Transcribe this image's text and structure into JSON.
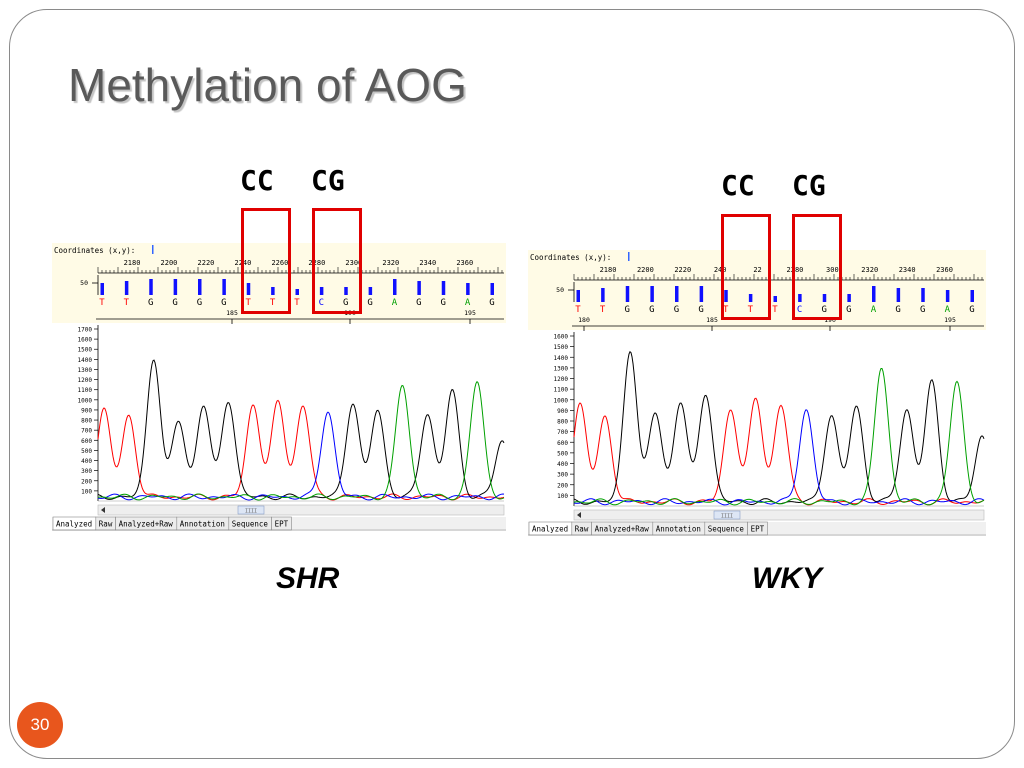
{
  "slide": {
    "title": "Methylation of AOG",
    "page_number": "30",
    "accent_color": "#e8561d"
  },
  "panels": [
    {
      "id": "shr",
      "caption": "SHR",
      "label_cc": "CC",
      "label_cg": "CG",
      "coordinates_label": "Coordinates (x,y):",
      "scale_top": [
        "2180",
        "2200",
        "2220",
        "2240",
        "2260",
        "2280",
        "2300",
        "2320",
        "2340",
        "2360"
      ],
      "bar_axis_label": "50",
      "bases": [
        "T",
        "T",
        "G",
        "G",
        "G",
        "G",
        "T",
        "T",
        "T",
        "C",
        "G",
        "G",
        "A",
        "G",
        "G",
        "A",
        "G"
      ],
      "position_markers": [
        "185",
        "190",
        "195"
      ],
      "y_ticks": [
        "1700",
        "1600",
        "1500",
        "1400",
        "1300",
        "1200",
        "1100",
        "1000",
        "900",
        "800",
        "700",
        "600",
        "500",
        "400",
        "300",
        "200",
        "100"
      ],
      "tabs": [
        "Analyzed",
        "Raw",
        "Analyzed+Raw",
        "Annotation",
        "Sequence",
        "EPT"
      ],
      "scroll_thumb": "IIII"
    },
    {
      "id": "wky",
      "caption": "WKY",
      "label_cc": "CC",
      "label_cg": "CG",
      "coordinates_label": "Coordinates (x,y):",
      "scale_top": [
        "2180",
        "2200",
        "2220",
        "240",
        "22",
        "2280",
        "300",
        "2320",
        "2340",
        "2360"
      ],
      "bar_axis_label": "50",
      "bases": [
        "T",
        "T",
        "G",
        "G",
        "G",
        "G",
        "T",
        "T",
        "T",
        "C",
        "G",
        "G",
        "A",
        "G",
        "G",
        "A",
        "G"
      ],
      "position_markers": [
        "180",
        "185",
        "190",
        "195"
      ],
      "y_ticks": [
        "1600",
        "1500",
        "1400",
        "1300",
        "1200",
        "1100",
        "1000",
        "900",
        "800",
        "700",
        "600",
        "500",
        "400",
        "300",
        "200",
        "100"
      ],
      "tabs": [
        "Analyzed",
        "Raw",
        "Analyzed+Raw",
        "Annotation",
        "Sequence",
        "EPT"
      ],
      "scroll_thumb": "IIII"
    }
  ],
  "chart_data": [
    {
      "type": "line",
      "sample": "SHR",
      "x_bases": [
        "T",
        "T",
        "G",
        "G",
        "G",
        "G",
        "T",
        "T",
        "T",
        "C",
        "G",
        "G",
        "A",
        "G",
        "G",
        "A",
        "G"
      ],
      "peak_heights": [
        870,
        800,
        1380,
        750,
        910,
        960,
        920,
        940,
        900,
        850,
        940,
        860,
        1110,
        830,
        1050,
        1140,
        560
      ],
      "base_colors": {
        "T": "#ff0000",
        "G": "#000000",
        "C": "#0000ff",
        "A": "#00a000"
      },
      "ylim": [
        0,
        1700
      ]
    },
    {
      "type": "line",
      "sample": "WKY",
      "x_bases": [
        "T",
        "T",
        "G",
        "G",
        "G",
        "G",
        "T",
        "T",
        "T",
        "C",
        "G",
        "G",
        "A",
        "G",
        "G",
        "A",
        "G"
      ],
      "peak_heights": [
        920,
        800,
        1440,
        840,
        940,
        1030,
        880,
        970,
        910,
        870,
        820,
        900,
        1270,
        870,
        1130,
        1130,
        620
      ],
      "base_colors": {
        "T": "#ff0000",
        "G": "#000000",
        "C": "#0000ff",
        "A": "#00a000"
      },
      "ylim": [
        0,
        1600
      ]
    }
  ]
}
